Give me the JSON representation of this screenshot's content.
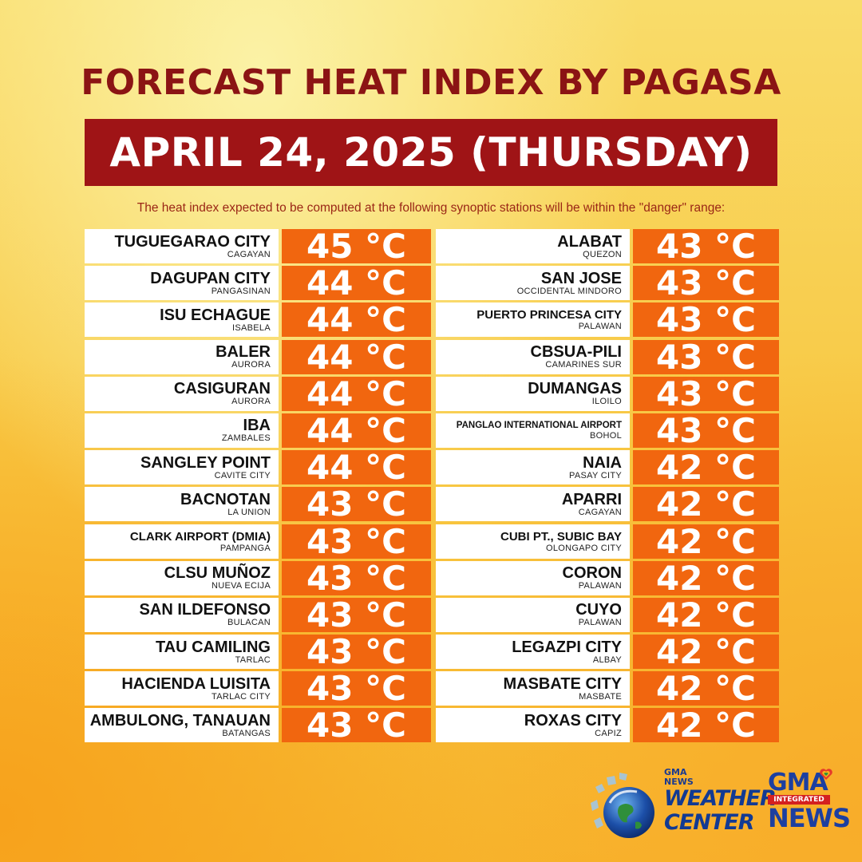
{
  "title": "FORECAST HEAT INDEX BY PAGASA",
  "date": "APRIL 24, 2025 (THURSDAY)",
  "note": "The heat index expected to be computed at the following synoptic stations will be within the \"danger\" range:",
  "left_stations": [
    {
      "name": "TUGUEGARAO CITY",
      "province": "CAGAYAN",
      "temp": "45 °C"
    },
    {
      "name": "DAGUPAN CITY",
      "province": "PANGASINAN",
      "temp": "44 °C"
    },
    {
      "name": "ISU ECHAGUE",
      "province": "ISABELA",
      "temp": "44 °C"
    },
    {
      "name": "BALER",
      "province": "AURORA",
      "temp": "44 °C"
    },
    {
      "name": "CASIGURAN",
      "province": "AURORA",
      "temp": "44 °C"
    },
    {
      "name": "IBA",
      "province": "ZAMBALES",
      "temp": "44 °C"
    },
    {
      "name": "SANGLEY POINT",
      "province": "CAVITE CITY",
      "temp": "44 °C"
    },
    {
      "name": "BACNOTAN",
      "province": "LA UNION",
      "temp": "43 °C"
    },
    {
      "name": "CLARK AIRPORT (DMIA)",
      "province": "PAMPANGA",
      "temp": "43 °C"
    },
    {
      "name": "CLSU MUÑOZ",
      "province": "NUEVA ECIJA",
      "temp": "43 °C"
    },
    {
      "name": "SAN ILDEFONSO",
      "province": "BULACAN",
      "temp": "43 °C"
    },
    {
      "name": "TAU CAMILING",
      "province": "TARLAC",
      "temp": "43 °C"
    },
    {
      "name": "HACIENDA LUISITA",
      "province": "TARLAC CITY",
      "temp": "43 °C"
    },
    {
      "name": "AMBULONG, TANAUAN",
      "province": "BATANGAS",
      "temp": "43 °C"
    }
  ],
  "right_stations": [
    {
      "name": "ALABAT",
      "province": "QUEZON",
      "temp": "43 °C"
    },
    {
      "name": "SAN JOSE",
      "province": "OCCIDENTAL MINDORO",
      "temp": "43 °C"
    },
    {
      "name": "PUERTO PRINCESA CITY",
      "province": "PALAWAN",
      "temp": "43 °C"
    },
    {
      "name": "CBSUA-PILI",
      "province": "CAMARINES SUR",
      "temp": "43 °C"
    },
    {
      "name": "DUMANGAS",
      "province": "ILOILO",
      "temp": "43 °C"
    },
    {
      "name": "PANGLAO INTERNATIONAL AIRPORT",
      "province": "BOHOL",
      "temp": "43 °C"
    },
    {
      "name": "NAIA",
      "province": "PASAY CITY",
      "temp": "42 °C"
    },
    {
      "name": "APARRI",
      "province": "CAGAYAN",
      "temp": "42 °C"
    },
    {
      "name": "CUBI PT., SUBIC BAY",
      "province": "OLONGAPO CITY",
      "temp": "42 °C"
    },
    {
      "name": "CORON",
      "province": "PALAWAN",
      "temp": "42 °C"
    },
    {
      "name": "CUYO",
      "province": "PALAWAN",
      "temp": "42 °C"
    },
    {
      "name": "LEGAZPI CITY",
      "province": "ALBAY",
      "temp": "42 °C"
    },
    {
      "name": "MASBATE CITY",
      "province": "MASBATE",
      "temp": "42 °C"
    },
    {
      "name": "ROXAS CITY",
      "province": "CAPIZ",
      "temp": "42 °C"
    }
  ],
  "logos": {
    "weather_center": {
      "gma": "GMA",
      "news": "NEWS",
      "line1": "WEATHER",
      "line2": "CENTER",
      "icon": "globe-weather-icon"
    },
    "gma_news": {
      "top": "GMA",
      "middle": "INTEGRATED",
      "bottom": "NEWS",
      "icon": "rainbow-heart-icon"
    }
  },
  "colors": {
    "title": "#8b1414",
    "date_box": "#9f1416",
    "temp_box": "#f1660f",
    "name_box": "#ffffff"
  }
}
